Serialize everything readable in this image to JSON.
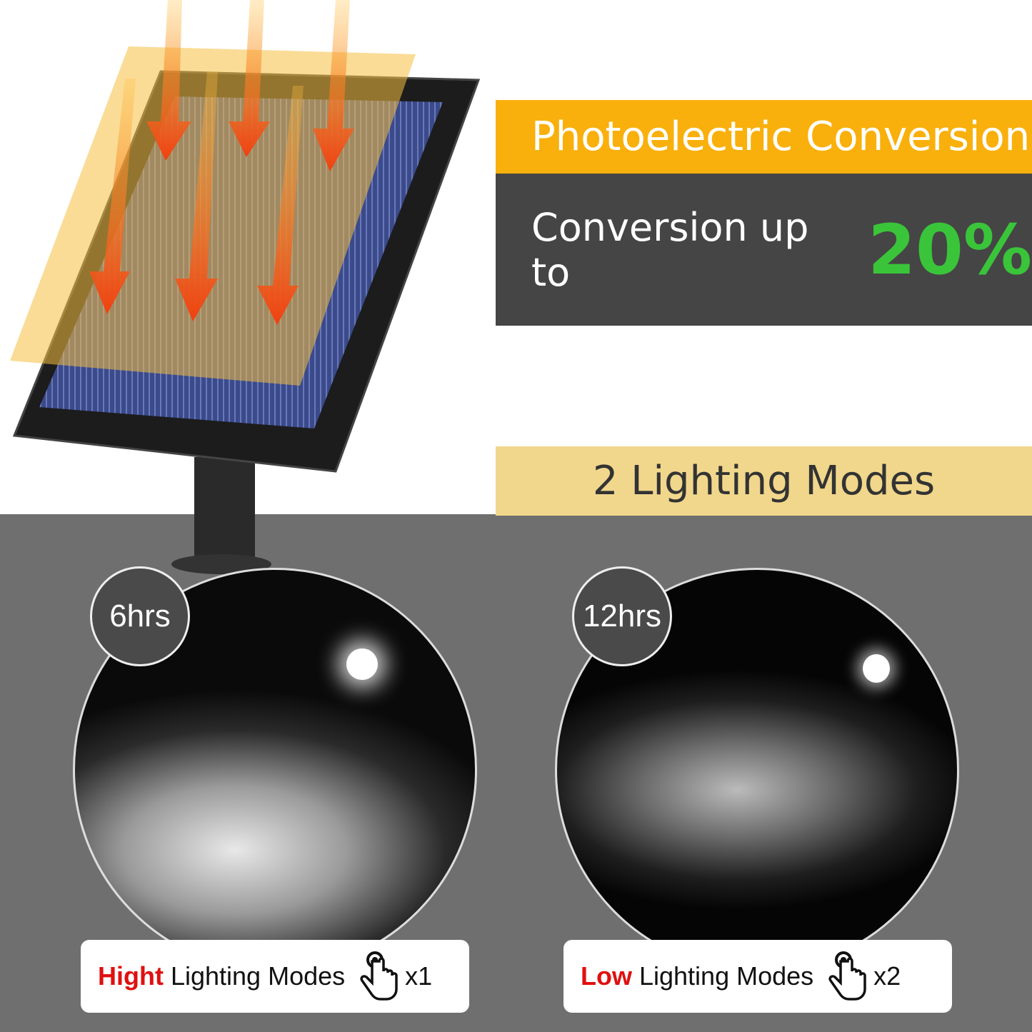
{
  "feature1": {
    "title": "Photoelectric Conversion",
    "subtitle_prefix": "Conversion up to",
    "highlight": "20%",
    "highlight_color": "#3ac43a",
    "band_color": "#f9b00c"
  },
  "feature2": {
    "title": "2 Lighting Modes"
  },
  "modes": [
    {
      "duration": "6hrs",
      "emphasis": "Hight",
      "label": "Lighting Modes",
      "icon": "hand-tap-icon",
      "presses": "x1"
    },
    {
      "duration": "12hrs",
      "emphasis": "Low",
      "label": "Lighting Modes",
      "icon": "hand-tap-icon",
      "presses": "x2"
    }
  ]
}
